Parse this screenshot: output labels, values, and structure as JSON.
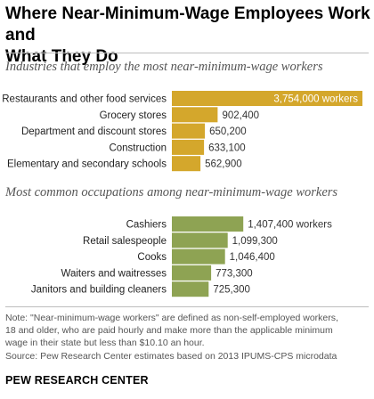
{
  "title_lines": [
    "Where Near-Minimum-Wage Employees Work and",
    "What They Do"
  ],
  "note_lines": [
    "Note: \"Near-minimum-wage workers\" are defined as non-self-employed workers,",
    "18 and older, who are paid hourly and make more than the applicable minimum",
    "wage in their state but less than $10.10 an hour.",
    "Source: Pew Research Center estimates based on 2013 IPUMS-CPS microdata"
  ],
  "brand": "PEW RESEARCH CENTER",
  "colors": {
    "industries": "#d4a72c",
    "occupations": "#8ea353",
    "label_inside": "#ffffff",
    "label_outside": "#333333"
  },
  "chart_data": [
    {
      "type": "bar",
      "orientation": "horizontal",
      "title": "Industries that employ the most near-minimum-wage workers",
      "categories": [
        "Restaurants and other food services",
        "Grocery stores",
        "Department and discount stores",
        "Construction",
        "Elementary and secondary schools"
      ],
      "values": [
        3754000,
        902400,
        650200,
        633100,
        562900
      ],
      "value_labels": [
        "3,754,000 workers",
        "902,400",
        "650,200",
        "633,100",
        "562,900"
      ],
      "xlim": [
        0,
        3754000
      ],
      "grid": false,
      "legend": "none"
    },
    {
      "type": "bar",
      "orientation": "horizontal",
      "title": "Most common occupations among near-minimum-wage workers",
      "categories": [
        "Cashiers",
        "Retail salespeople",
        "Cooks",
        "Waiters and waitresses",
        "Janitors and building cleaners"
      ],
      "values": [
        1407400,
        1099300,
        1046400,
        773300,
        725300
      ],
      "value_labels": [
        "1,407,400 workers",
        "1,099,300",
        "1,046,400",
        "773,300",
        "725,300"
      ],
      "xlim": [
        0,
        3754000
      ],
      "grid": false,
      "legend": "none"
    }
  ]
}
